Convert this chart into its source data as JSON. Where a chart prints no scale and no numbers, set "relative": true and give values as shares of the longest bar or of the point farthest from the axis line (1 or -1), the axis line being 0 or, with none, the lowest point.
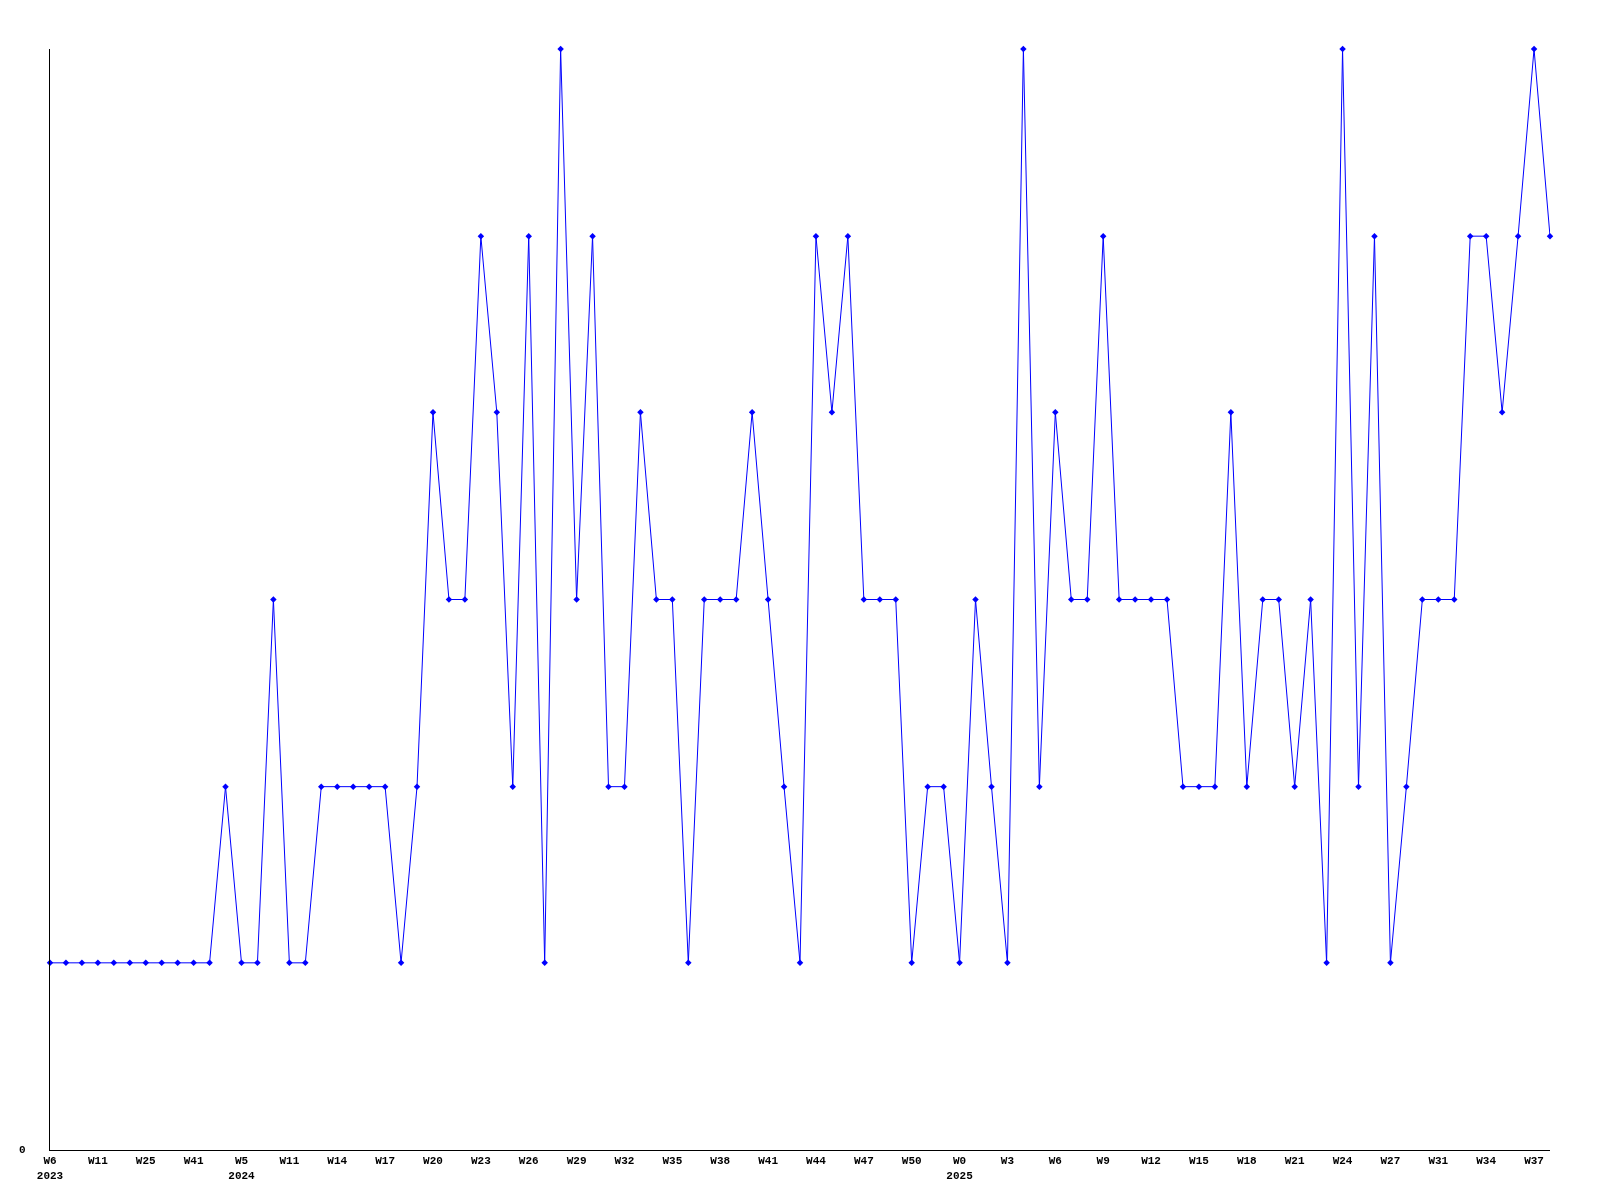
{
  "chart_data": {
    "type": "line",
    "relative": true,
    "color": "#0000ff",
    "marker": "diamond",
    "line_style": "solid",
    "annotations": [
      "0"
    ],
    "categories": [
      "W6\n2023",
      null,
      null,
      "W11",
      null,
      null,
      "W25",
      null,
      null,
      "W41",
      null,
      null,
      "W5\n2024",
      null,
      null,
      "W11",
      null,
      null,
      "W14",
      null,
      null,
      "W17",
      null,
      null,
      "W20",
      null,
      null,
      "W23",
      null,
      null,
      "W26",
      null,
      null,
      "W29",
      null,
      null,
      "W32",
      null,
      null,
      "W35",
      null,
      null,
      "W38",
      null,
      null,
      "W41",
      null,
      null,
      "W44",
      null,
      null,
      "W47",
      null,
      null,
      "W50",
      null,
      null,
      "W0\n2025",
      null,
      null,
      "W3",
      null,
      null,
      "W6",
      null,
      null,
      "W9",
      null,
      null,
      "W12",
      null,
      null,
      "W15",
      null,
      null,
      "W18",
      null,
      null,
      "W21",
      null,
      null,
      "W24",
      null,
      null,
      "W27",
      null,
      null,
      "W31",
      null,
      null,
      "W34",
      null,
      null,
      "W37",
      null
    ],
    "values": [
      0.17,
      0.17,
      0.17,
      0.17,
      0.17,
      0.17,
      0.17,
      0.17,
      0.17,
      0.17,
      0.17,
      0.33,
      0.17,
      0.17,
      0.5,
      0.17,
      0.17,
      0.33,
      0.33,
      0.33,
      0.33,
      0.33,
      0.17,
      0.33,
      0.67,
      0.5,
      0.5,
      0.83,
      0.67,
      0.33,
      0.83,
      0.17,
      1,
      0.5,
      0.83,
      0.33,
      0.33,
      0.67,
      0.5,
      0.5,
      0.17,
      0.5,
      0.5,
      0.5,
      0.67,
      0.5,
      0.33,
      0.17,
      0.83,
      0.67,
      0.83,
      0.5,
      0.5,
      0.5,
      0.17,
      0.33,
      0.33,
      0.17,
      0.5,
      0.33,
      0.17,
      1,
      0.33,
      0.67,
      0.5,
      0.5,
      0.83,
      0.5,
      0.5,
      0.5,
      0.5,
      0.33,
      0.33,
      0.33,
      0.67,
      0.33,
      0.5,
      0.5,
      0.33,
      0.5,
      0.17,
      1,
      0.33,
      0.83,
      0.17,
      0.33,
      0.5,
      0.5,
      0.5,
      0.83,
      0.83,
      0.67,
      0.83,
      1,
      0.83
    ]
  }
}
